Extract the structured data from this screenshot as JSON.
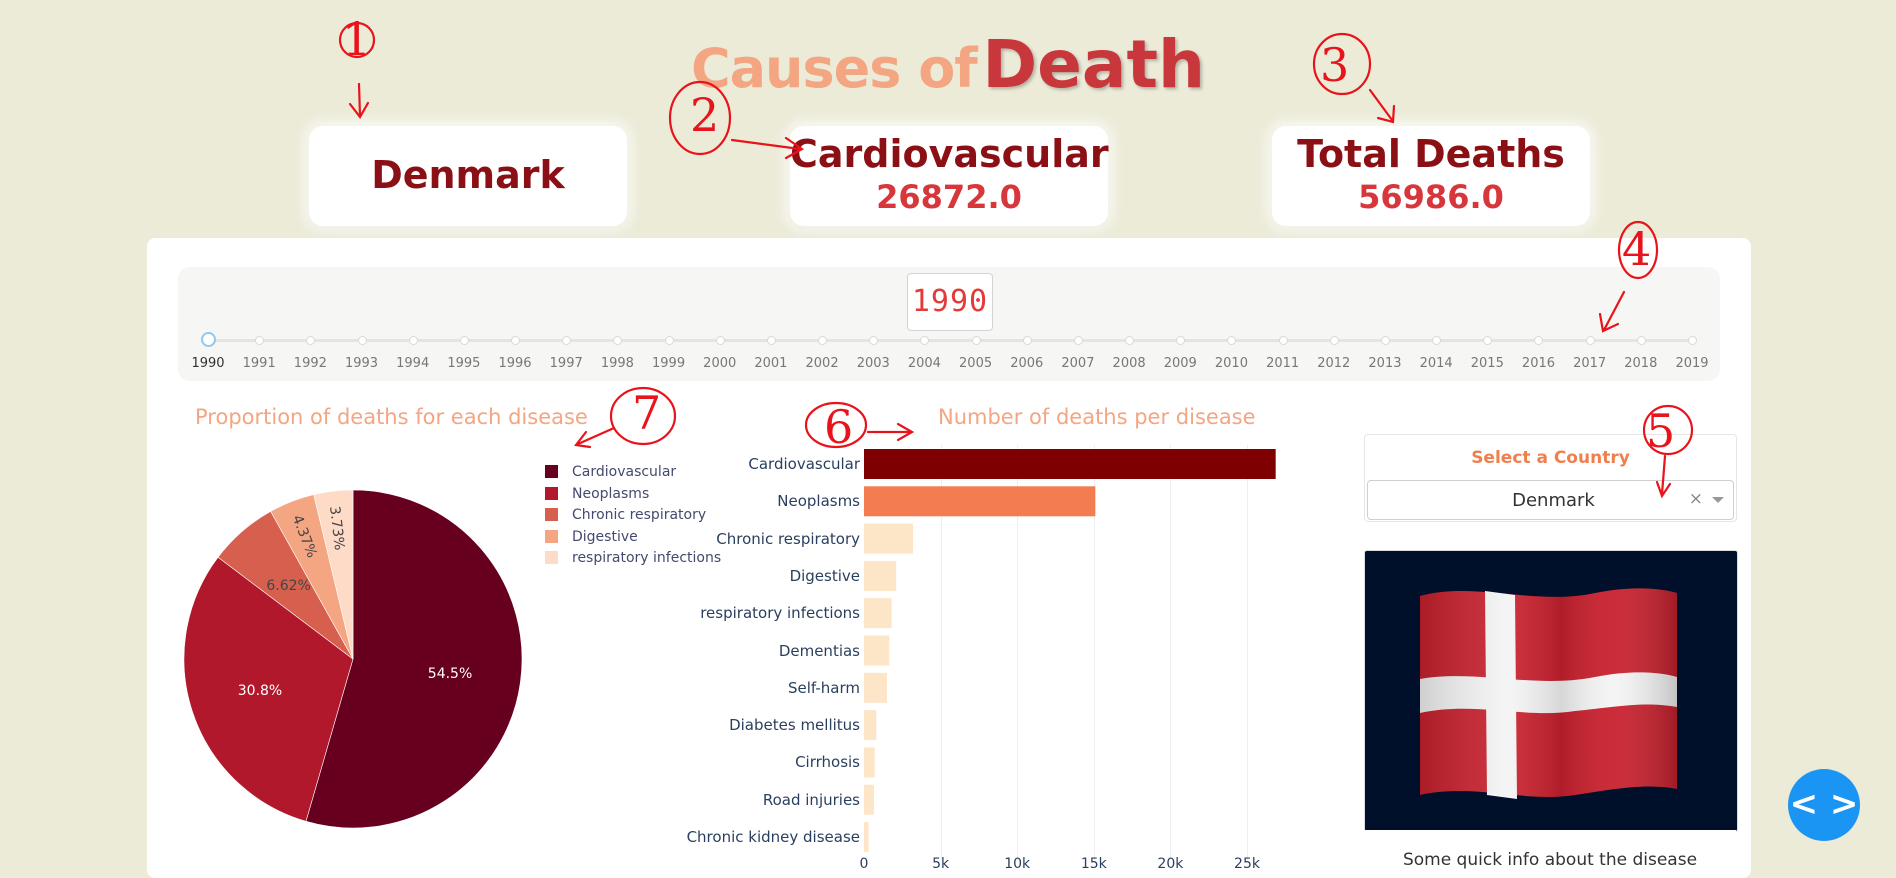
{
  "title": {
    "part1": "Causes of",
    "part2": "Death"
  },
  "cards": [
    {
      "label": "Denmark"
    },
    {
      "label": "Cardiovascular",
      "value": "26872.0"
    },
    {
      "label": "Total Deaths",
      "value": "56986.0"
    }
  ],
  "slider": {
    "current": "1990",
    "years": [
      "1990",
      "1991",
      "1992",
      "1993",
      "1994",
      "1995",
      "1996",
      "1997",
      "1998",
      "1999",
      "2000",
      "2001",
      "2002",
      "2003",
      "2004",
      "2005",
      "2006",
      "2007",
      "2008",
      "2009",
      "2010",
      "2011",
      "2012",
      "2013",
      "2014",
      "2015",
      "2016",
      "2017",
      "2018",
      "2019"
    ]
  },
  "select": {
    "title": "Select a Country",
    "value": "Denmark",
    "clear_icon": "×"
  },
  "info_text": "Some quick info about the disease",
  "annotations": [
    "1",
    "2",
    "3",
    "4",
    "5",
    "6",
    "7"
  ],
  "colors": {
    "background": "#ecebd8",
    "accent": "#f4a582",
    "dark_red": "#8b1015"
  },
  "chart_data": [
    {
      "type": "pie",
      "title": "Proportion of deaths for each disease",
      "labels": [
        "Cardiovascular",
        "Neoplasms",
        "Chronic respiratory",
        "Digestive",
        "respiratory infections"
      ],
      "values": [
        54.5,
        30.8,
        6.62,
        4.37,
        3.73
      ],
      "value_labels": [
        "54.5%",
        "30.8%",
        "6.62%",
        "4.37%",
        "3.73%"
      ],
      "colors": [
        "#67001f",
        "#b2182b",
        "#d6604d",
        "#f4a582",
        "#fddbc7"
      ],
      "legend": "right"
    },
    {
      "type": "bar",
      "orientation": "horizontal",
      "title": "Number of deaths per disease",
      "categories": [
        "Cardiovascular",
        "Neoplasms",
        "Chronic respiratory",
        "Digestive",
        "respiratory infections",
        "Dementias",
        "Self-harm",
        "Diabetes mellitus",
        "Cirrhosis",
        "Road injuries",
        "Chronic kidney disease"
      ],
      "values": [
        26872,
        15100,
        3200,
        2100,
        1800,
        1650,
        1500,
        800,
        700,
        650,
        300
      ],
      "colors": [
        "#7f0000",
        "#f47c51",
        "#fde5c8",
        "#fde5c8",
        "#fde5c8",
        "#fde5c8",
        "#fde5c8",
        "#fde5c8",
        "#fde5c8",
        "#fde5c8",
        "#fde5c8"
      ],
      "xticks": [
        "0",
        "5k",
        "10k",
        "15k",
        "20k",
        "25k"
      ],
      "xtick_values": [
        0,
        5000,
        10000,
        15000,
        20000,
        25000
      ],
      "xlim": [
        0,
        28000
      ],
      "grid": true
    }
  ]
}
